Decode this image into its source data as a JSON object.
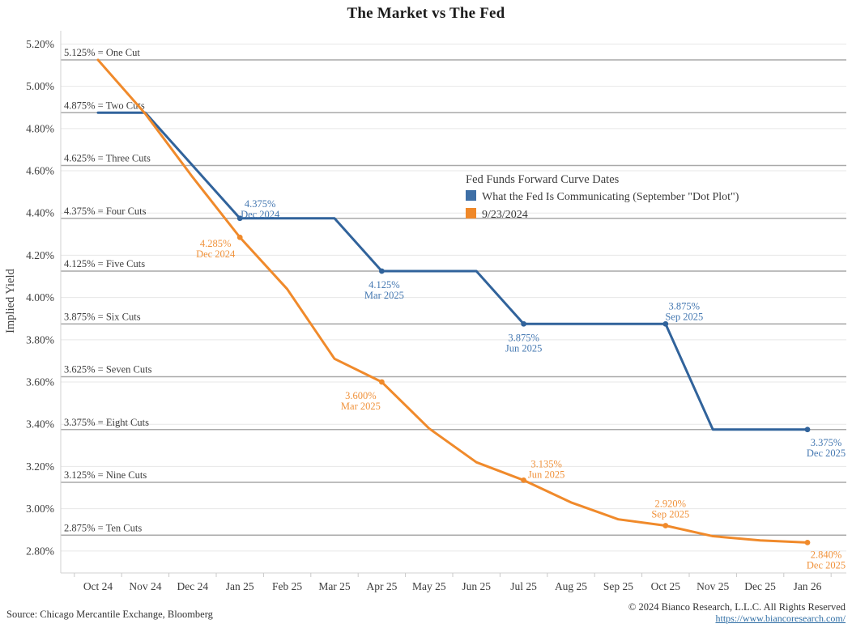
{
  "title": "The Market vs The Fed",
  "y_axis_title": "Implied Yield",
  "legend": {
    "title": "Fed Funds Forward Curve Dates",
    "items": [
      {
        "label": "What the Fed Is Communicating (September \"Dot Plot\")",
        "color": "#3E6FA6"
      },
      {
        "label": "9/23/2024",
        "color": "#EF8829"
      }
    ]
  },
  "footer": {
    "source": "Source: Chicago Mercantile Exchange, Bloomberg",
    "copyright": "© 2024 Bianco Research, L.L.C. All Rights Reserved",
    "link": "https://www.biancoresearch.com/"
  },
  "chart_data": {
    "type": "line",
    "title": "The Market vs The Fed",
    "ylabel": "Implied Yield",
    "ylim": [
      2.7,
      5.3
    ],
    "grid": true,
    "legend_position": "inside-upper-right",
    "categories": [
      "Oct 24",
      "Nov 24",
      "Dec 24",
      "Jan 25",
      "Feb 25",
      "Mar 25",
      "Apr 25",
      "May 25",
      "Jun 25",
      "Jul 25",
      "Aug 25",
      "Sep 25",
      "Oct 25",
      "Nov 25",
      "Dec 25",
      "Jan 26"
    ],
    "series": [
      {
        "name": "What the Fed Is Communicating (September \"Dot Plot\")",
        "color": "#31639B",
        "label_color": "#4679B2",
        "values": [
          4.875,
          4.875,
          4.625,
          4.375,
          4.375,
          4.375,
          4.125,
          4.125,
          4.125,
          3.875,
          3.875,
          3.875,
          3.875,
          3.375,
          3.375,
          3.375
        ]
      },
      {
        "name": "9/23/2024",
        "color": "#F08A2B",
        "label_color": "#F0923B",
        "values": [
          5.125,
          4.87,
          4.57,
          4.285,
          4.04,
          3.71,
          3.6,
          3.38,
          3.22,
          3.135,
          3.03,
          2.95,
          2.92,
          2.87,
          2.85,
          2.84
        ]
      }
    ],
    "y_ticks": [
      {
        "v": 5.2,
        "label": "5.20%"
      },
      {
        "v": 5.0,
        "label": "5.00%"
      },
      {
        "v": 4.8,
        "label": "4.80%"
      },
      {
        "v": 4.6,
        "label": "4.60%"
      },
      {
        "v": 4.4,
        "label": "4.40%"
      },
      {
        "v": 4.2,
        "label": "4.20%"
      },
      {
        "v": 4.0,
        "label": "4.00%"
      },
      {
        "v": 3.8,
        "label": "3.80%"
      },
      {
        "v": 3.6,
        "label": "3.60%"
      },
      {
        "v": 3.4,
        "label": "3.40%"
      },
      {
        "v": 3.2,
        "label": "3.20%"
      },
      {
        "v": 3.0,
        "label": "3.00%"
      },
      {
        "v": 2.8,
        "label": "2.80%"
      }
    ],
    "cut_lines": [
      {
        "v": 5.125,
        "label": "5.125% = One Cut"
      },
      {
        "v": 4.875,
        "label": "4.875% = Two Cuts"
      },
      {
        "v": 4.625,
        "label": "4.625% = Three Cuts"
      },
      {
        "v": 4.375,
        "label": "4.375% = Four Cuts"
      },
      {
        "v": 4.125,
        "label": "4.125% = Five Cuts"
      },
      {
        "v": 3.875,
        "label": "3.875% = Six Cuts"
      },
      {
        "v": 3.625,
        "label": "3.625% = Seven Cuts"
      },
      {
        "v": 3.375,
        "label": "3.375% = Eight Cuts"
      },
      {
        "v": 3.125,
        "label": "3.125% = Nine Cuts"
      },
      {
        "v": 2.875,
        "label": "2.875% = Ten Cuts"
      }
    ],
    "point_labels": [
      {
        "series": 0,
        "value": "4.375%",
        "date": "Dec 2024",
        "cat": "Jan 25",
        "v": 4.375,
        "ox": 25,
        "oy": -14,
        "anchor": "middle"
      },
      {
        "series": 0,
        "value": "4.125%",
        "date": "Mar 2025",
        "cat": "Apr 25",
        "v": 4.125,
        "ox": 3,
        "oy": 21,
        "anchor": "middle"
      },
      {
        "series": 0,
        "value": "3.875%",
        "date": "Jun 2025",
        "cat": "Jul 25",
        "v": 3.875,
        "ox": 0,
        "oy": 21,
        "anchor": "middle"
      },
      {
        "series": 0,
        "value": "3.875%",
        "date": "Sep 2025",
        "cat": "Oct 25",
        "v": 3.875,
        "ox": 23,
        "oy": -18,
        "anchor": "middle"
      },
      {
        "series": 0,
        "value": "3.375%",
        "date": "Dec 2025",
        "cat": "Jan 26",
        "v": 3.375,
        "ox": 23,
        "oy": 20,
        "anchor": "middle"
      },
      {
        "series": 1,
        "value": "4.285%",
        "date": "Dec 2024",
        "cat": "Jan 25",
        "v": 4.285,
        "ox": -30,
        "oy": 12,
        "anchor": "middle"
      },
      {
        "series": 1,
        "value": "3.600%",
        "date": "Mar 2025",
        "cat": "Apr 25",
        "v": 3.6,
        "ox": -26,
        "oy": 21,
        "anchor": "middle"
      },
      {
        "series": 1,
        "value": "3.135%",
        "date": "Jun 2025",
        "cat": "Jul 25",
        "v": 3.135,
        "ox": 28,
        "oy": -16,
        "anchor": "middle"
      },
      {
        "series": 1,
        "value": "2.920%",
        "date": "Sep 2025",
        "cat": "Oct 25",
        "v": 2.92,
        "ox": 6,
        "oy": -23,
        "anchor": "middle"
      },
      {
        "series": 1,
        "value": "2.840%",
        "date": "Dec 2025",
        "cat": "Jan 26",
        "v": 2.84,
        "ox": 23,
        "oy": 19,
        "anchor": "middle"
      }
    ]
  }
}
